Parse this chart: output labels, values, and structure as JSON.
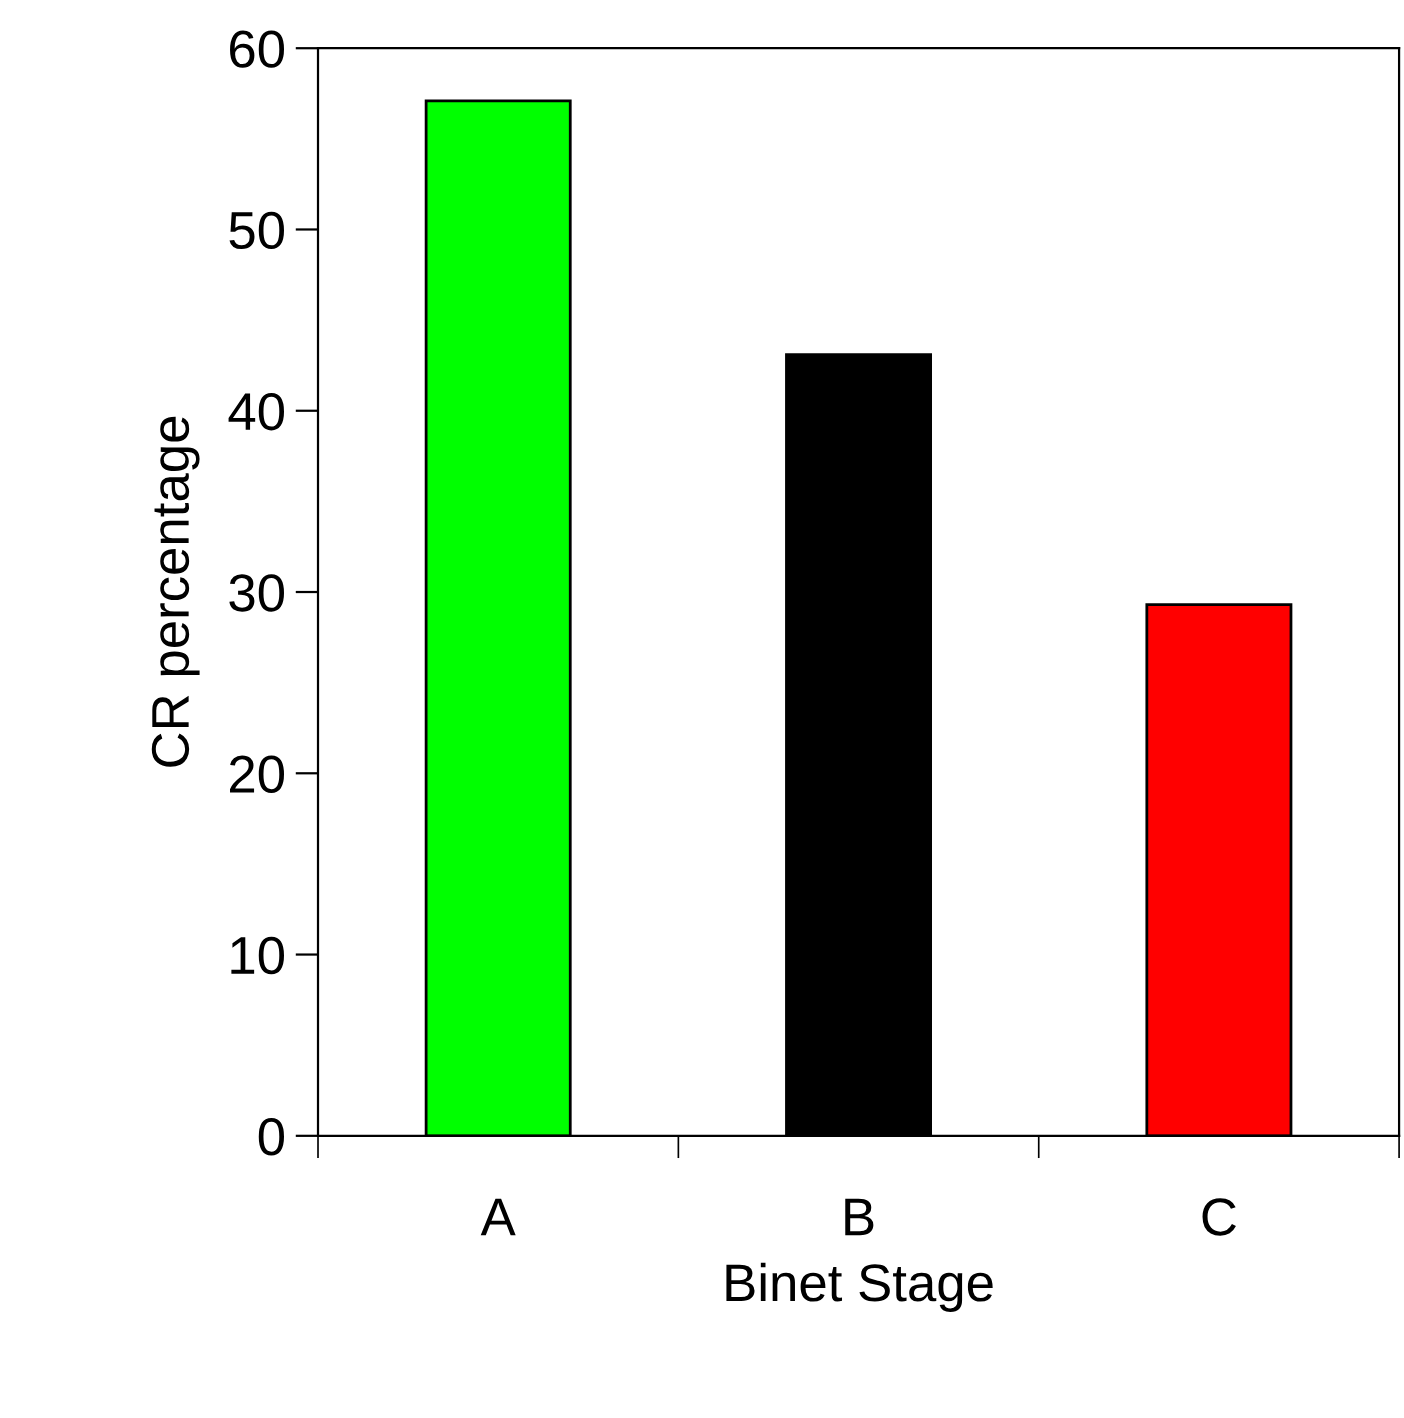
{
  "chart_data": {
    "type": "bar",
    "xlabel": "Binet Stage",
    "ylabel": "CR percentage",
    "categories": [
      "A",
      "B",
      "C"
    ],
    "values": [
      57.1,
      43.1,
      29.3
    ],
    "colors": [
      "#00ff00",
      "#000000",
      "#ff0000"
    ],
    "ylim": [
      0,
      60
    ],
    "yticks": [
      0,
      10,
      20,
      30,
      40,
      50,
      60
    ],
    "grid": false
  }
}
